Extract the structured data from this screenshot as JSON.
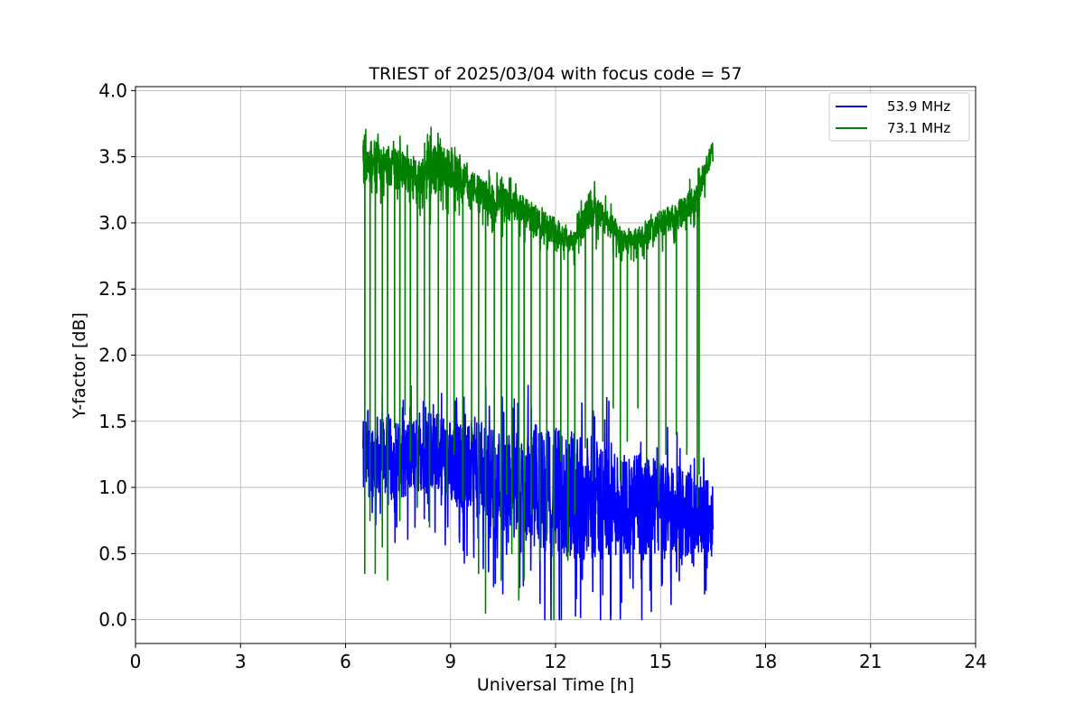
{
  "chart_data": {
    "type": "line",
    "title": "TRIEST of 2025/03/04 with focus code = 57",
    "xlabel": "Universal Time [h]",
    "ylabel": "Y-factor [dB]",
    "xlim": [
      0,
      24
    ],
    "ylim": [
      -0.18,
      4.03
    ],
    "xticks": [
      0,
      3,
      6,
      9,
      12,
      15,
      18,
      21,
      24
    ],
    "xtick_labels": [
      "0",
      "3",
      "6",
      "9",
      "12",
      "15",
      "18",
      "21",
      "24"
    ],
    "yticks": [
      0.0,
      0.5,
      1.0,
      1.5,
      2.0,
      2.5,
      3.0,
      3.5,
      4.0
    ],
    "ytick_labels": [
      "0.0",
      "0.5",
      "1.0",
      "1.5",
      "2.0",
      "2.5",
      "3.0",
      "3.5",
      "4.0"
    ],
    "grid": true,
    "legend_position": "top-right",
    "series": [
      {
        "name": "53.9 MHz",
        "color": "#0000ff",
        "x": [
          6.5,
          7.0,
          7.5,
          8.0,
          8.5,
          9.0,
          9.5,
          10.0,
          10.5,
          11.0,
          11.5,
          12.0,
          12.5,
          13.0,
          13.5,
          14.0,
          14.5,
          15.0,
          15.5,
          16.0,
          16.5
        ],
        "y": [
          1.2,
          1.25,
          1.2,
          1.25,
          1.3,
          1.2,
          1.15,
          1.1,
          1.05,
          1.0,
          1.0,
          0.95,
          0.95,
          0.9,
          0.9,
          0.88,
          0.85,
          0.85,
          0.82,
          0.8,
          0.78
        ],
        "spread": [
          0.3,
          0.3,
          0.3,
          0.3,
          0.3,
          0.32,
          0.35,
          0.38,
          0.4,
          0.42,
          0.45,
          0.5,
          0.5,
          0.45,
          0.45,
          0.4,
          0.4,
          0.35,
          0.35,
          0.3,
          0.25
        ],
        "min": 0.0,
        "max": 1.9
      },
      {
        "name": "73.1 MHz",
        "color": "#008000",
        "x": [
          6.5,
          7.0,
          7.5,
          8.0,
          8.5,
          9.0,
          9.5,
          10.0,
          10.5,
          11.0,
          11.5,
          12.0,
          12.5,
          13.0,
          13.5,
          14.0,
          14.5,
          15.0,
          15.5,
          16.0,
          16.5
        ],
        "y": [
          3.5,
          3.45,
          3.4,
          3.35,
          3.4,
          3.4,
          3.3,
          3.2,
          3.15,
          3.1,
          3.0,
          2.95,
          2.85,
          3.1,
          3.0,
          2.85,
          2.9,
          3.0,
          3.05,
          3.2,
          3.55
        ],
        "spread": [
          0.2,
          0.15,
          0.15,
          0.12,
          0.2,
          0.15,
          0.12,
          0.12,
          0.12,
          0.12,
          0.12,
          0.1,
          0.08,
          0.15,
          0.1,
          0.08,
          0.08,
          0.1,
          0.1,
          0.1,
          0.08
        ],
        "dropouts": [
          {
            "x": 6.55,
            "y": 0.35
          },
          {
            "x": 6.7,
            "y": 0.75
          },
          {
            "x": 6.85,
            "y": 0.35
          },
          {
            "x": 7.05,
            "y": 0.55
          },
          {
            "x": 7.2,
            "y": 0.3
          },
          {
            "x": 7.4,
            "y": 1.45
          },
          {
            "x": 7.55,
            "y": 0.75
          },
          {
            "x": 7.7,
            "y": 1.55
          },
          {
            "x": 7.85,
            "y": 1.2
          },
          {
            "x": 8.05,
            "y": 0.85
          },
          {
            "x": 8.25,
            "y": 1.3
          },
          {
            "x": 8.4,
            "y": 0.7
          },
          {
            "x": 8.65,
            "y": 1.3
          },
          {
            "x": 8.9,
            "y": 0.95
          },
          {
            "x": 9.1,
            "y": 1.25
          },
          {
            "x": 9.35,
            "y": 0.9
          },
          {
            "x": 9.6,
            "y": 1.35
          },
          {
            "x": 9.8,
            "y": 0.35
          },
          {
            "x": 10.0,
            "y": 0.05
          },
          {
            "x": 10.25,
            "y": 0.7
          },
          {
            "x": 10.45,
            "y": 0.3
          },
          {
            "x": 10.6,
            "y": 0.95
          },
          {
            "x": 10.75,
            "y": 0.5
          },
          {
            "x": 10.95,
            "y": 0.15
          },
          {
            "x": 11.1,
            "y": 0.3
          },
          {
            "x": 11.3,
            "y": 0.8
          },
          {
            "x": 11.55,
            "y": 0.45
          },
          {
            "x": 11.75,
            "y": 0.6
          },
          {
            "x": 11.95,
            "y": 0.0
          },
          {
            "x": 12.15,
            "y": 1.2
          },
          {
            "x": 12.35,
            "y": 0.45
          },
          {
            "x": 12.55,
            "y": 0.8
          },
          {
            "x": 12.85,
            "y": 1.3
          },
          {
            "x": 13.05,
            "y": 1.05
          },
          {
            "x": 13.35,
            "y": 1.35
          },
          {
            "x": 13.65,
            "y": 1.6
          },
          {
            "x": 13.85,
            "y": 1.05
          },
          {
            "x": 14.05,
            "y": 1.35
          },
          {
            "x": 14.35,
            "y": 1.6
          },
          {
            "x": 14.6,
            "y": 1.15
          },
          {
            "x": 14.95,
            "y": 0.9
          },
          {
            "x": 15.15,
            "y": 1.25
          },
          {
            "x": 15.45,
            "y": 1.4
          },
          {
            "x": 15.75,
            "y": 1.25
          },
          {
            "x": 16.05,
            "y": 0.85
          },
          {
            "x": 16.1,
            "y": 1.1
          }
        ],
        "min": 0.0,
        "max": 3.84
      }
    ]
  }
}
